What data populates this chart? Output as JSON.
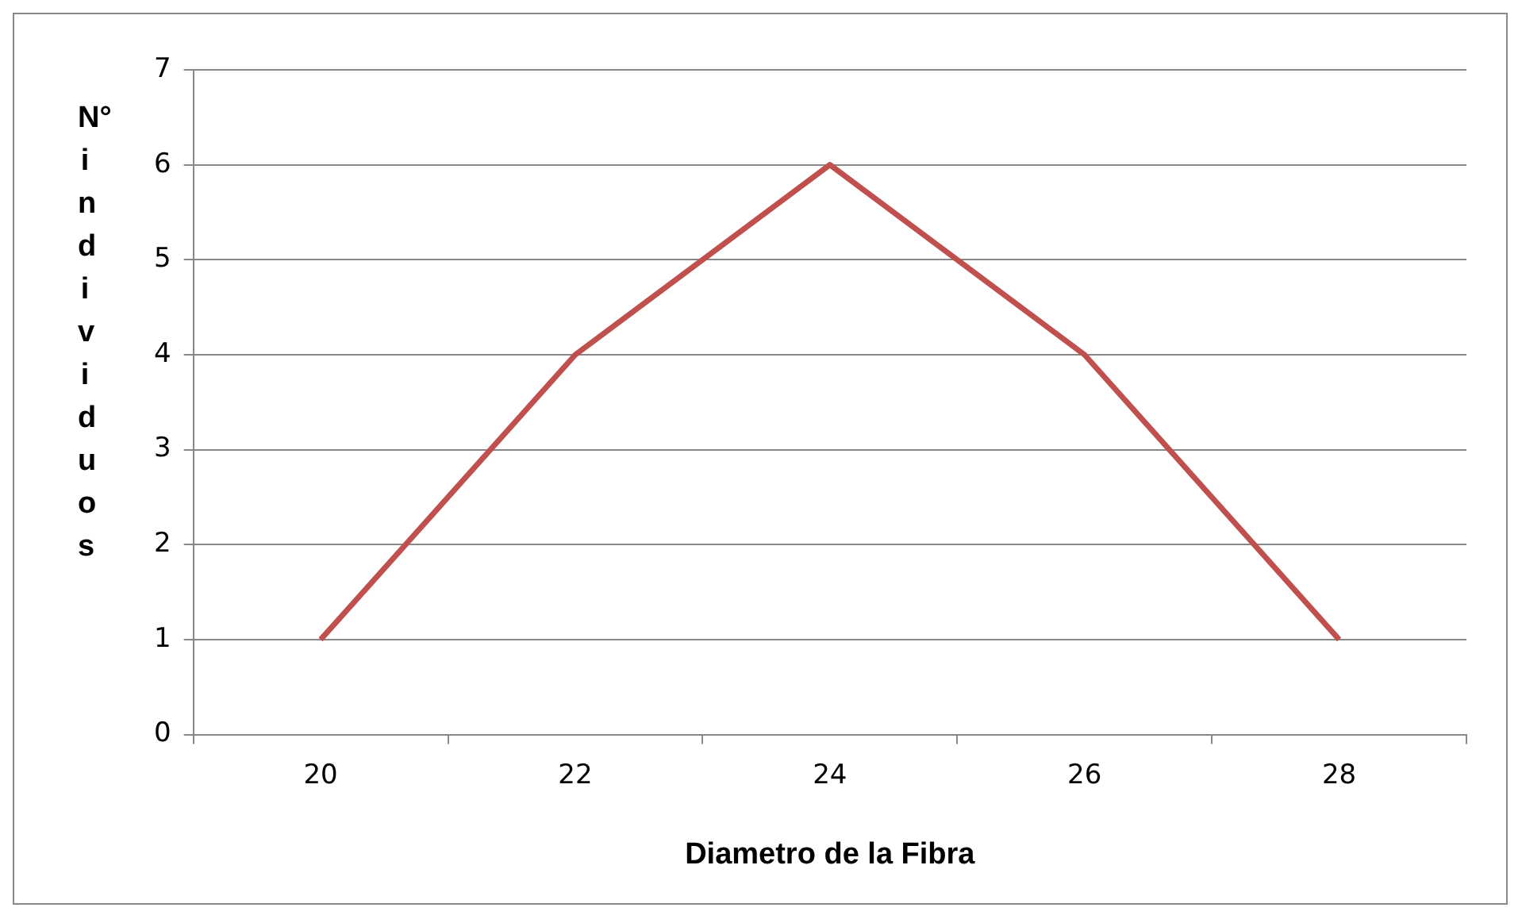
{
  "chart_data": {
    "type": "line",
    "xlabel": "Diametro de la Fibra",
    "ylabel": "N° individuos",
    "categories": [
      "20",
      "22",
      "24",
      "26",
      "28"
    ],
    "series": [
      {
        "color": "#c0504d",
        "values": [
          1,
          4,
          6,
          4,
          1
        ]
      }
    ],
    "ylim": [
      0,
      7
    ],
    "yticks": [
      0,
      1,
      2,
      3,
      4,
      5,
      6,
      7
    ],
    "grid": "y",
    "marker": "none"
  }
}
